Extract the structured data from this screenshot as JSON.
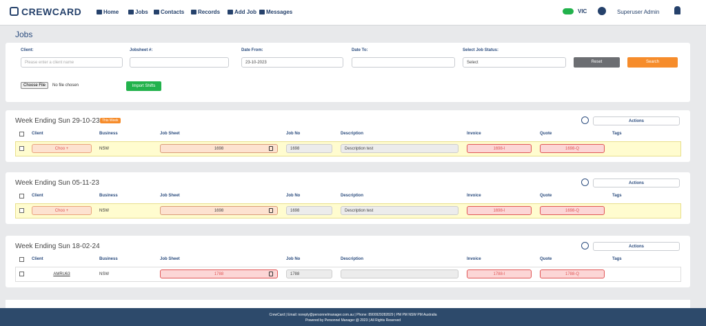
{
  "nav": {
    "brand": "CREWCARD",
    "links": [
      "Home",
      "Jobs",
      "Contacts",
      "Records",
      "Add Job",
      "Messages"
    ],
    "region": "VIC",
    "user": "Superuser Admin"
  },
  "page_title": "Jobs",
  "filters": {
    "labels": [
      "Client:",
      "Jobsheet #:",
      "Date From:",
      "Date To:",
      "Select Job Status:"
    ],
    "client_placeholder": "Please enter a client name",
    "date_from": "23-10-2023",
    "status": "Select",
    "reset": "Reset",
    "search": "Search",
    "choose_file": "Choose File",
    "no_file": "No file chosen",
    "import": "Import Shifts"
  },
  "columns": [
    "Client",
    "Business",
    "Job Sheet",
    "Job No",
    "Description",
    "Invoice",
    "Quote",
    "Tags"
  ],
  "actions": "Actions",
  "weeks": [
    {
      "title": "Week Ending Sun 29-10-23",
      "badge": "This Week",
      "row": {
        "client": "Choo +",
        "business": "NSW",
        "job_sheet": "1698",
        "job_no": "1698",
        "description": "Description test",
        "invoice": "1698-I",
        "quote": "1698-Q"
      }
    },
    {
      "title": "Week Ending Sun 05-11-23",
      "row": {
        "client": "Choo +",
        "business": "NSW",
        "job_sheet": "1698",
        "job_no": "1698",
        "description": "Description test",
        "invoice": "1698-I",
        "quote": "1698-Q"
      }
    },
    {
      "title": "Week Ending Sun 18-02-24",
      "row": {
        "client": "AMRU63",
        "business": "NSW",
        "job_sheet": "1788",
        "job_no": "1788",
        "invoice": "1788-I",
        "quote": "1788-Q"
      }
    }
  ],
  "footer": [
    "CrewCard | Email: noreply@personnelmanager.com.au | Phone: 8900929282829 | PM PM NSW PM Australia",
    "Powered by Personnel Manager @ 2023 | All Rights Reserved"
  ]
}
